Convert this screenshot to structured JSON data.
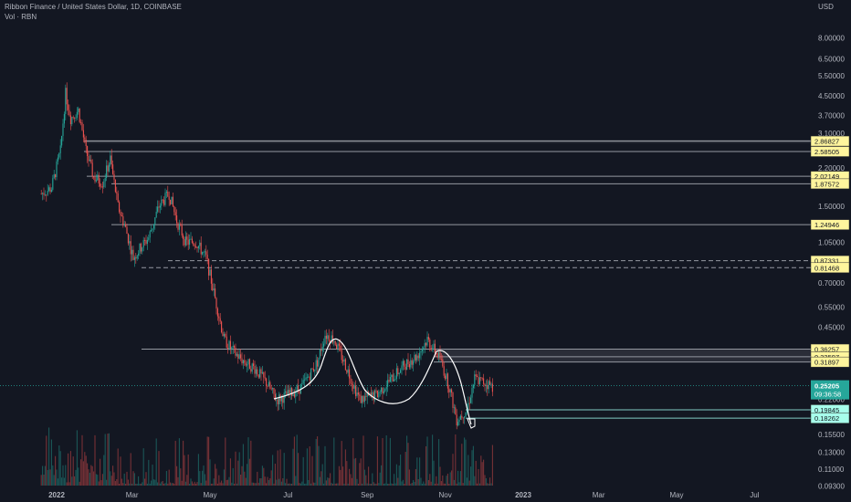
{
  "header": {
    "title": "Ribbon Finance / United States Dollar, 1D, COINBASE",
    "volume_label": "Vol · RBN"
  },
  "currency": "USD",
  "colors": {
    "background": "#131722",
    "up": "#26a69a",
    "down": "#ef5350",
    "level_line": "#9598a1",
    "level_label_bg": "#fff59d",
    "support_label_bg": "#a7ffeb",
    "price_label_bg": "#26a69a",
    "cup_curve": "#ffffff"
  },
  "chart_data": {
    "type": "candlestick",
    "y_scale": "log",
    "y_ticks": [
      "8.00000",
      "6.50000",
      "5.50000",
      "4.50000",
      "3.70000",
      "3.10000",
      "2.20000",
      "1.50000",
      "1.05000",
      "0.70000",
      "0.55000",
      "0.45000",
      "0.22000",
      "0.15500",
      "0.13000",
      "0.11000",
      "0.09300"
    ],
    "x_ticks": [
      "2022",
      "Mar",
      "May",
      "Jul",
      "Sep",
      "Nov",
      "2023",
      "Mar",
      "May",
      "Jul"
    ],
    "level_labels": [
      "2.86827",
      "2.58505",
      "2.02149",
      "1.87572",
      "1.24946",
      "0.87331",
      "0.81468",
      "0.36257",
      "0.33597",
      "0.31897"
    ],
    "support_labels": [
      "0.19845",
      "0.18262"
    ],
    "last_price": "0.25205",
    "countdown": "09:36:58",
    "close_path": [
      [
        "2021-12-20",
        1.7
      ],
      [
        "2021-12-28",
        1.8
      ],
      [
        "2022-01-04",
        2.6
      ],
      [
        "2022-01-08",
        4.6
      ],
      [
        "2022-01-12",
        3.6
      ],
      [
        "2022-01-18",
        3.9
      ],
      [
        "2022-01-24",
        2.6
      ],
      [
        "2022-01-30",
        2.0
      ],
      [
        "2022-02-06",
        1.9
      ],
      [
        "2022-02-12",
        2.4
      ],
      [
        "2022-02-18",
        1.5
      ],
      [
        "2022-02-24",
        1.2
      ],
      [
        "2022-03-02",
        0.9
      ],
      [
        "2022-03-08",
        1.0
      ],
      [
        "2022-03-14",
        1.1
      ],
      [
        "2022-03-22",
        1.5
      ],
      [
        "2022-03-30",
        1.7
      ],
      [
        "2022-04-05",
        1.3
      ],
      [
        "2022-04-12",
        1.05
      ],
      [
        "2022-04-20",
        1.05
      ],
      [
        "2022-04-28",
        0.9
      ],
      [
        "2022-05-05",
        0.6
      ],
      [
        "2022-05-12",
        0.4
      ],
      [
        "2022-05-20",
        0.35
      ],
      [
        "2022-05-28",
        0.32
      ],
      [
        "2022-06-05",
        0.3
      ],
      [
        "2022-06-14",
        0.26
      ],
      [
        "2022-06-22",
        0.22
      ],
      [
        "2022-07-01",
        0.23
      ],
      [
        "2022-07-12",
        0.25
      ],
      [
        "2022-07-24",
        0.32
      ],
      [
        "2022-07-30",
        0.42
      ],
      [
        "2022-08-06",
        0.4
      ],
      [
        "2022-08-16",
        0.3
      ],
      [
        "2022-08-26",
        0.22
      ],
      [
        "2022-09-08",
        0.23
      ],
      [
        "2022-09-20",
        0.27
      ],
      [
        "2022-09-30",
        0.31
      ],
      [
        "2022-10-10",
        0.34
      ],
      [
        "2022-10-18",
        0.4
      ],
      [
        "2022-10-28",
        0.33
      ],
      [
        "2022-11-04",
        0.25
      ],
      [
        "2022-11-10",
        0.18
      ],
      [
        "2022-11-18",
        0.2
      ],
      [
        "2022-11-24",
        0.27
      ],
      [
        "2022-12-02",
        0.26
      ],
      [
        "2022-12-08",
        0.25
      ]
    ]
  }
}
